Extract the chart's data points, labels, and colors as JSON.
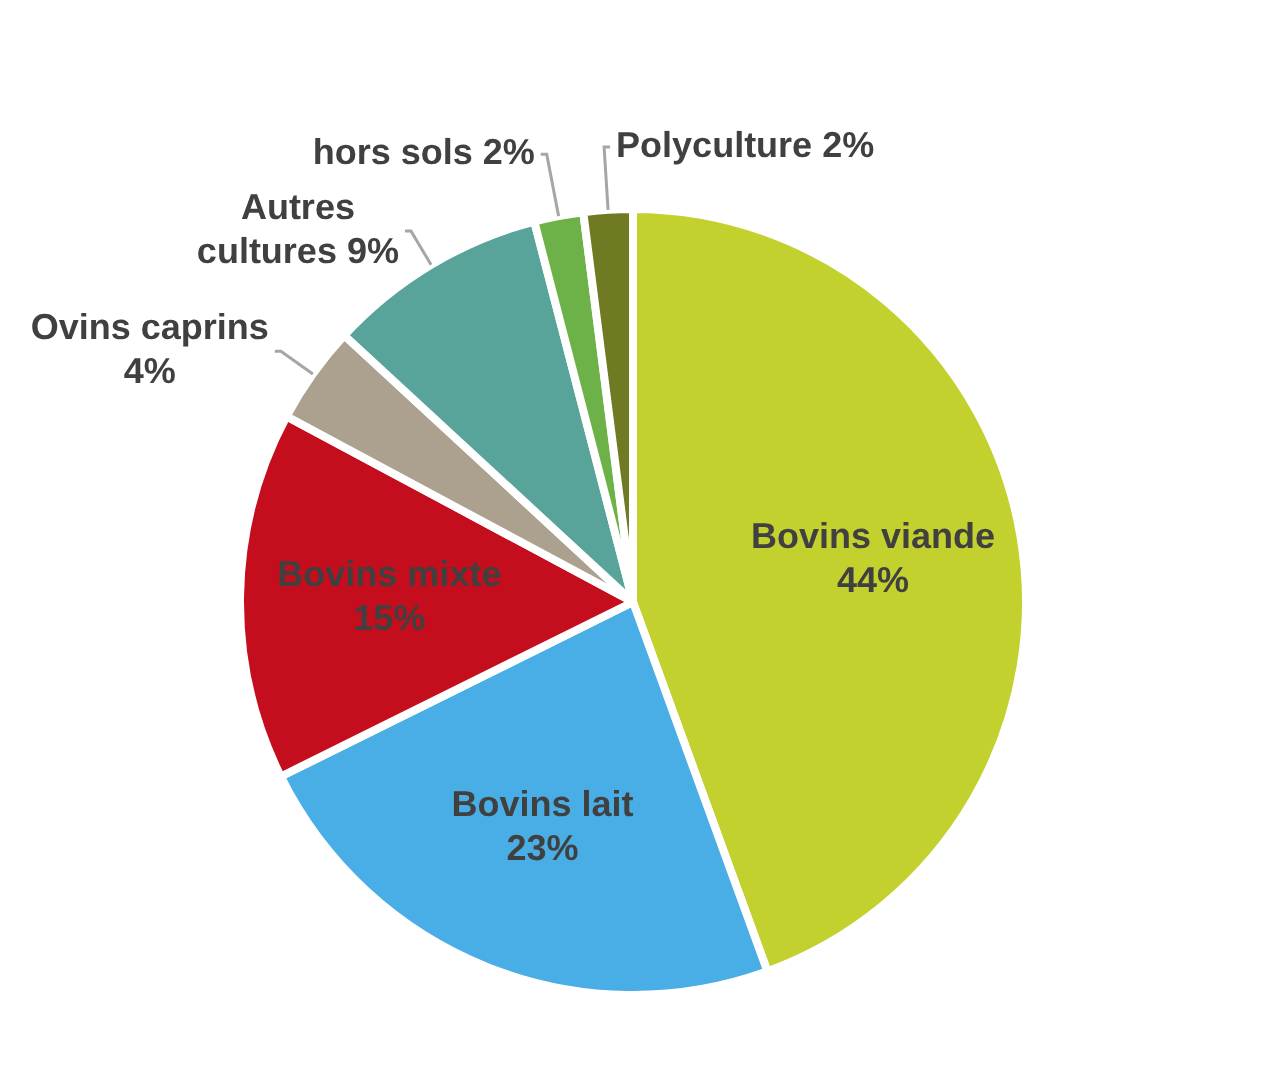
{
  "chart_data": {
    "type": "pie",
    "categories": [
      "Bovins viande",
      "Bovins lait",
      "Bovins mixte",
      "Ovins caprins",
      "Autres cultures",
      "hors sols",
      "Polyculture"
    ],
    "values": [
      44,
      23,
      15,
      4,
      9,
      2,
      2
    ],
    "value_labels": [
      "44%",
      "23%",
      "15%",
      "4%",
      "9%",
      "2%",
      "2%"
    ],
    "colors": [
      "#c3d12f",
      "#4aaee6",
      "#c40e1e",
      "#aca08e",
      "#58a39a",
      "#6db248",
      "#6f7a22"
    ],
    "legend": false
  }
}
